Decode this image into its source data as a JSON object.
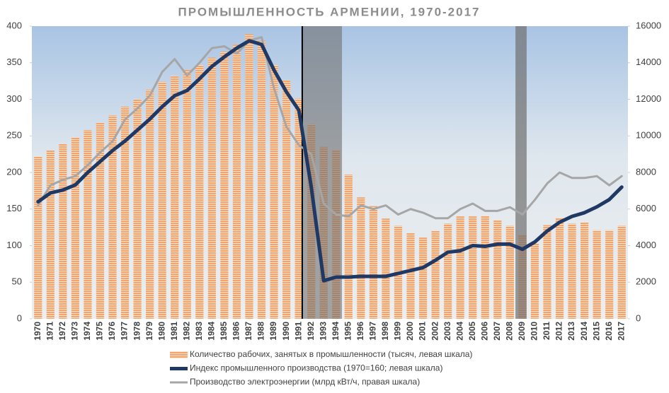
{
  "chart_data": {
    "type": "combo",
    "title": "ПРОМЫШЛЕННОСТЬ АРМЕНИИ, 1970-2017",
    "categories": [
      "1970",
      "1971",
      "1972",
      "1973",
      "1974",
      "1975",
      "1976",
      "1977",
      "1978",
      "1979",
      "1980",
      "1981",
      "1982",
      "1983",
      "1984",
      "1985",
      "1986",
      "1987",
      "1988",
      "1989",
      "1990",
      "1991",
      "1992",
      "1993",
      "1994",
      "1995",
      "1996",
      "1997",
      "1998",
      "1999",
      "2000",
      "2001",
      "2002",
      "2003",
      "2004",
      "2005",
      "2006",
      "2007",
      "2008",
      "2009",
      "2010",
      "2011",
      "2012",
      "2013",
      "2014",
      "2015",
      "2016",
      "2017"
    ],
    "series": [
      {
        "name": "Количество рабочих, занятых в промышленности (тысяч, левая шкала)",
        "type": "bar",
        "color": "#f4a46a",
        "values": [
          222,
          230,
          239,
          248,
          258,
          268,
          278,
          290,
          300,
          313,
          324,
          332,
          340,
          347,
          357,
          365,
          375,
          389,
          380,
          347,
          326,
          301,
          266,
          235,
          231,
          197,
          166,
          154,
          137,
          127,
          117,
          111,
          120,
          130,
          140,
          140,
          141,
          135,
          127,
          115,
          103,
          128,
          138,
          130,
          132,
          121,
          121,
          127
        ]
      },
      {
        "name": "Индекс промышленного производства (1970=160; левая шкала)",
        "type": "line",
        "color": "#1f3864",
        "values": [
          160,
          172,
          176,
          183,
          200,
          215,
          230,
          243,
          258,
          273,
          290,
          305,
          312,
          328,
          345,
          358,
          370,
          380,
          375,
          340,
          310,
          285,
          180,
          52,
          57,
          57,
          58,
          58,
          58,
          62,
          66,
          70,
          80,
          91,
          93,
          100,
          99,
          102,
          102,
          95,
          105,
          120,
          132,
          140,
          145,
          153,
          163,
          180
        ]
      },
      {
        "name": "Производство электроэнергии (млрд кВт/ч, правая шкала)",
        "type": "line",
        "color": "#a6a6a6",
        "axis": "y2",
        "values": [
          6200,
          7300,
          7600,
          7800,
          8400,
          9100,
          9700,
          10900,
          11500,
          12200,
          13500,
          14200,
          13300,
          14000,
          14800,
          14900,
          14500,
          15200,
          15400,
          12600,
          10500,
          9500,
          9000,
          6300,
          5700,
          5600,
          6200,
          6000,
          6200,
          5700,
          6000,
          5800,
          5500,
          5500,
          6000,
          6300,
          5900,
          5900,
          6100,
          5700,
          6500,
          7400,
          8000,
          7700,
          7700,
          7800,
          7300,
          7800
        ]
      }
    ],
    "ylim": [
      0,
      400
    ],
    "yticks": [
      0,
      50,
      100,
      150,
      200,
      250,
      300,
      350,
      400
    ],
    "y2lim": [
      0,
      16000
    ],
    "y2ticks": [
      0,
      2000,
      4000,
      6000,
      8000,
      10000,
      12000,
      14000,
      16000
    ]
  }
}
